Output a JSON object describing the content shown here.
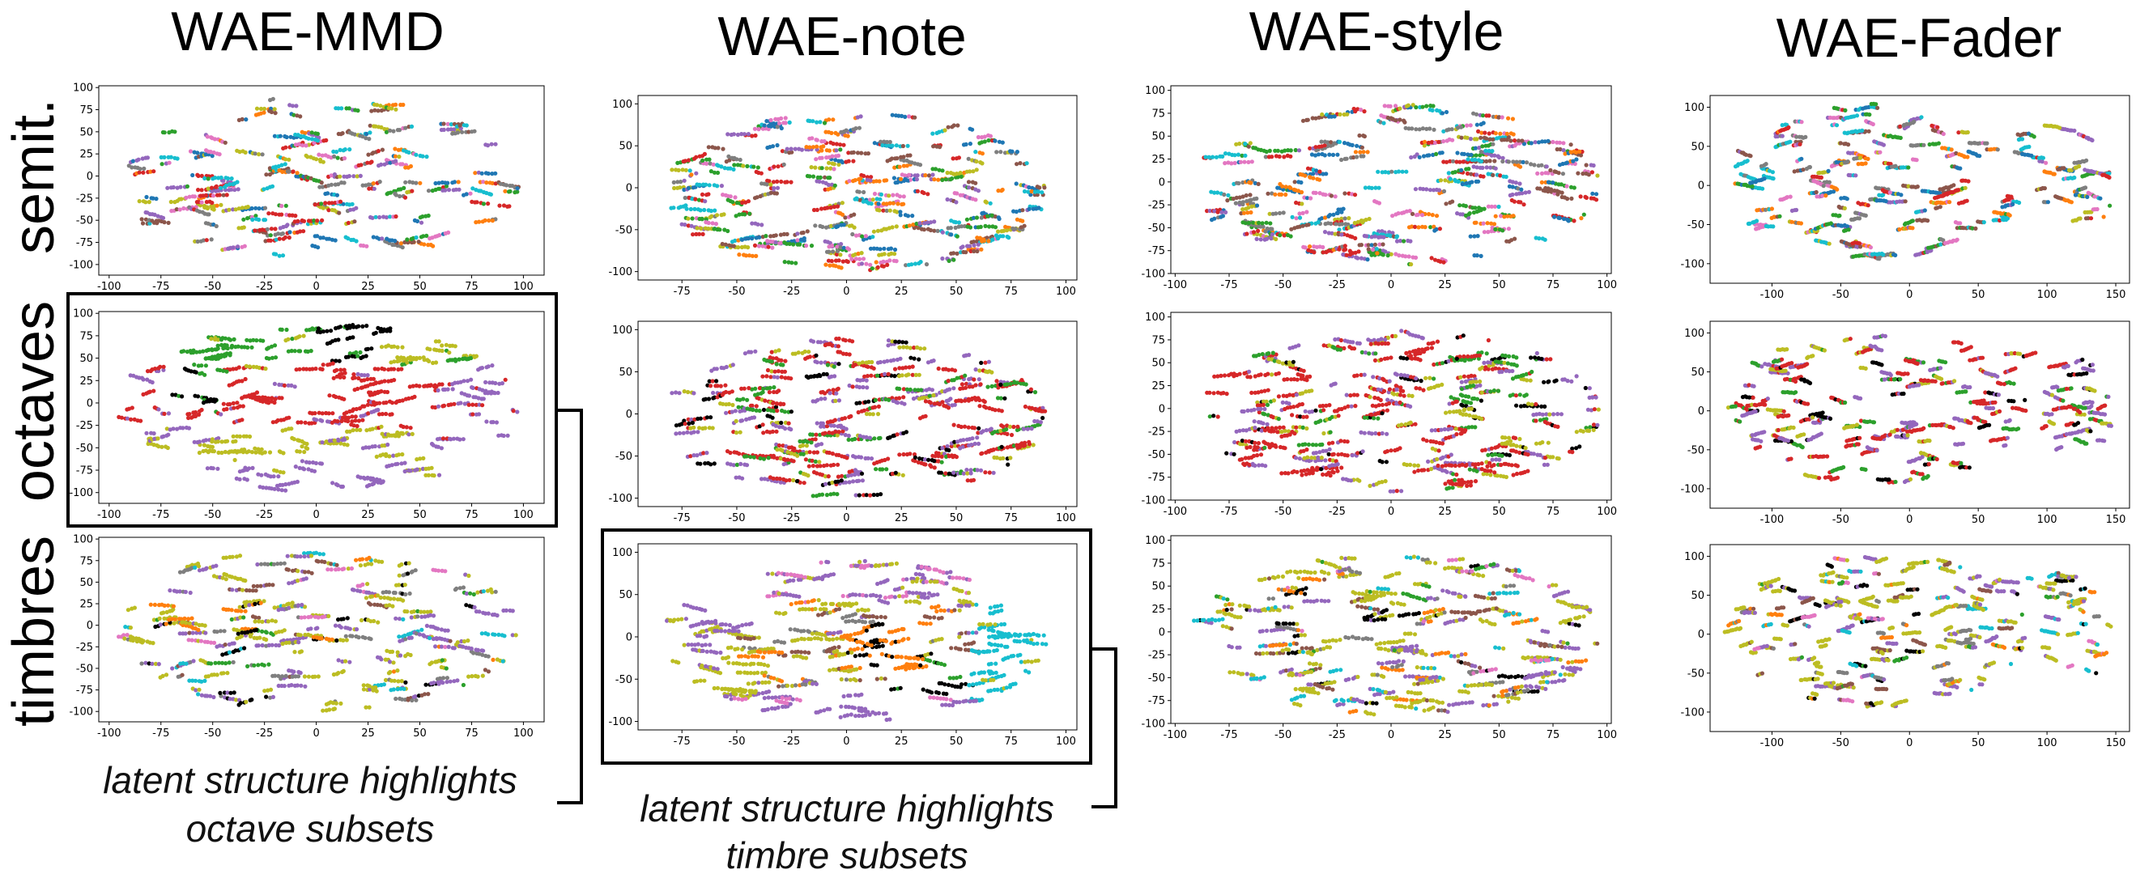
{
  "figure": {
    "columns": [
      "WAE-MMD",
      "WAE-note",
      "WAE-style",
      "WAE-Fader"
    ],
    "rows": [
      "semit.",
      "octaves",
      "timbres"
    ]
  },
  "captions": [
    {
      "lines": [
        "latent structure highlights",
        "octave subsets"
      ],
      "refers_to": "WAE-MMD / octaves"
    },
    {
      "lines": [
        "latent structure highlights",
        "timbre subsets"
      ],
      "refers_to": "WAE-note / timbres"
    }
  ],
  "palette": [
    "#1f77b4",
    "#ff7f0e",
    "#2ca02c",
    "#d62728",
    "#9467bd",
    "#8c564b",
    "#e377c2",
    "#7f7f7f",
    "#bcbd22",
    "#17becf",
    "#000000"
  ],
  "chart_data": [
    {
      "type": "scatter",
      "title": "WAE-MMD",
      "row": "semit.",
      "xlim": [
        -105,
        110
      ],
      "ylim": [
        -112,
        102
      ],
      "xticks": [
        -100,
        -75,
        -50,
        -25,
        0,
        25,
        50,
        75,
        100
      ],
      "yticks": [
        -100,
        -75,
        -50,
        -25,
        0,
        25,
        50,
        75,
        100
      ],
      "coloring": "mixed",
      "shape": "mmd",
      "seed": 11,
      "n_points": 900
    },
    {
      "type": "scatter",
      "title": "WAE-note",
      "row": "semit.",
      "xlim": [
        -95,
        105
      ],
      "ylim": [
        -110,
        110
      ],
      "xticks": [
        -75,
        -50,
        -25,
        0,
        25,
        50,
        75,
        100
      ],
      "yticks": [
        -100,
        -50,
        0,
        50,
        100
      ],
      "coloring": "mixed",
      "shape": "note",
      "seed": 12,
      "n_points": 1100
    },
    {
      "type": "scatter",
      "title": "WAE-style",
      "row": "semit.",
      "xlim": [
        -102,
        102
      ],
      "ylim": [
        -100,
        105
      ],
      "xticks": [
        -100,
        -75,
        -50,
        -25,
        0,
        25,
        50,
        75,
        100
      ],
      "yticks": [
        -100,
        -75,
        -50,
        -25,
        0,
        25,
        50,
        75,
        100
      ],
      "coloring": "mixed",
      "shape": "style",
      "seed": 13,
      "n_points": 1100
    },
    {
      "type": "scatter",
      "title": "WAE-Fader",
      "row": "semit.",
      "xlim": [
        -145,
        160
      ],
      "ylim": [
        -125,
        115
      ],
      "xticks": [
        -100,
        -50,
        0,
        50,
        100,
        150
      ],
      "yticks": [
        -100,
        -50,
        0,
        50,
        100
      ],
      "coloring": "mixed",
      "shape": "fader",
      "seed": 14,
      "n_points": 1000
    },
    {
      "type": "scatter",
      "title": "WAE-MMD",
      "row": "octaves",
      "xlim": [
        -105,
        110
      ],
      "ylim": [
        -112,
        102
      ],
      "xticks": [
        -100,
        -75,
        -50,
        -25,
        0,
        25,
        50,
        75,
        100
      ],
      "yticks": [
        -100,
        -75,
        -50,
        -25,
        0,
        25,
        50,
        75,
        100
      ],
      "coloring": "octave-clusters",
      "shape": "mmd",
      "seed": 21,
      "n_points": 1000
    },
    {
      "type": "scatter",
      "title": "WAE-note",
      "row": "octaves",
      "xlim": [
        -95,
        105
      ],
      "ylim": [
        -110,
        110
      ],
      "xticks": [
        -75,
        -50,
        -25,
        0,
        25,
        50,
        75,
        100
      ],
      "yticks": [
        -100,
        -50,
        0,
        50,
        100
      ],
      "coloring": "octave-mixed",
      "shape": "note",
      "seed": 22,
      "n_points": 1100
    },
    {
      "type": "scatter",
      "title": "WAE-style",
      "row": "octaves",
      "xlim": [
        -102,
        102
      ],
      "ylim": [
        -100,
        105
      ],
      "xticks": [
        -100,
        -75,
        -50,
        -25,
        0,
        25,
        50,
        75,
        100
      ],
      "yticks": [
        -100,
        -75,
        -50,
        -25,
        0,
        25,
        50,
        75,
        100
      ],
      "coloring": "octave-mixed",
      "shape": "style",
      "seed": 23,
      "n_points": 1100
    },
    {
      "type": "scatter",
      "title": "WAE-Fader",
      "row": "octaves",
      "xlim": [
        -145,
        160
      ],
      "ylim": [
        -125,
        115
      ],
      "xticks": [
        -100,
        -50,
        0,
        50,
        100,
        150
      ],
      "yticks": [
        -100,
        -50,
        0,
        50,
        100
      ],
      "coloring": "octave-mixed",
      "shape": "fader",
      "seed": 24,
      "n_points": 1000
    },
    {
      "type": "scatter",
      "title": "WAE-MMD",
      "row": "timbres",
      "xlim": [
        -105,
        110
      ],
      "ylim": [
        -112,
        102
      ],
      "xticks": [
        -100,
        -75,
        -50,
        -25,
        0,
        25,
        50,
        75,
        100
      ],
      "yticks": [
        -100,
        -75,
        -50,
        -25,
        0,
        25,
        50,
        75,
        100
      ],
      "coloring": "timbre-mixed",
      "shape": "mmd",
      "seed": 31,
      "n_points": 900
    },
    {
      "type": "scatter",
      "title": "WAE-note",
      "row": "timbres",
      "xlim": [
        -95,
        105
      ],
      "ylim": [
        -110,
        110
      ],
      "xticks": [
        -75,
        -50,
        -25,
        0,
        25,
        50,
        75,
        100
      ],
      "yticks": [
        -100,
        -50,
        0,
        50,
        100
      ],
      "coloring": "timbre-clusters",
      "shape": "note",
      "seed": 32,
      "n_points": 1100
    },
    {
      "type": "scatter",
      "title": "WAE-style",
      "row": "timbres",
      "xlim": [
        -102,
        102
      ],
      "ylim": [
        -100,
        105
      ],
      "xticks": [
        -100,
        -75,
        -50,
        -25,
        0,
        25,
        50,
        75,
        100
      ],
      "yticks": [
        -100,
        -75,
        -50,
        -25,
        0,
        25,
        50,
        75,
        100
      ],
      "coloring": "timbre-mixed",
      "shape": "style",
      "seed": 33,
      "n_points": 1100
    },
    {
      "type": "scatter",
      "title": "WAE-Fader",
      "row": "timbres",
      "xlim": [
        -145,
        160
      ],
      "ylim": [
        -125,
        115
      ],
      "xticks": [
        -100,
        -50,
        0,
        50,
        100,
        150
      ],
      "yticks": [
        -100,
        -50,
        0,
        50,
        100
      ],
      "coloring": "timbre-mixed",
      "shape": "fader",
      "seed": 34,
      "n_points": 1000
    }
  ]
}
